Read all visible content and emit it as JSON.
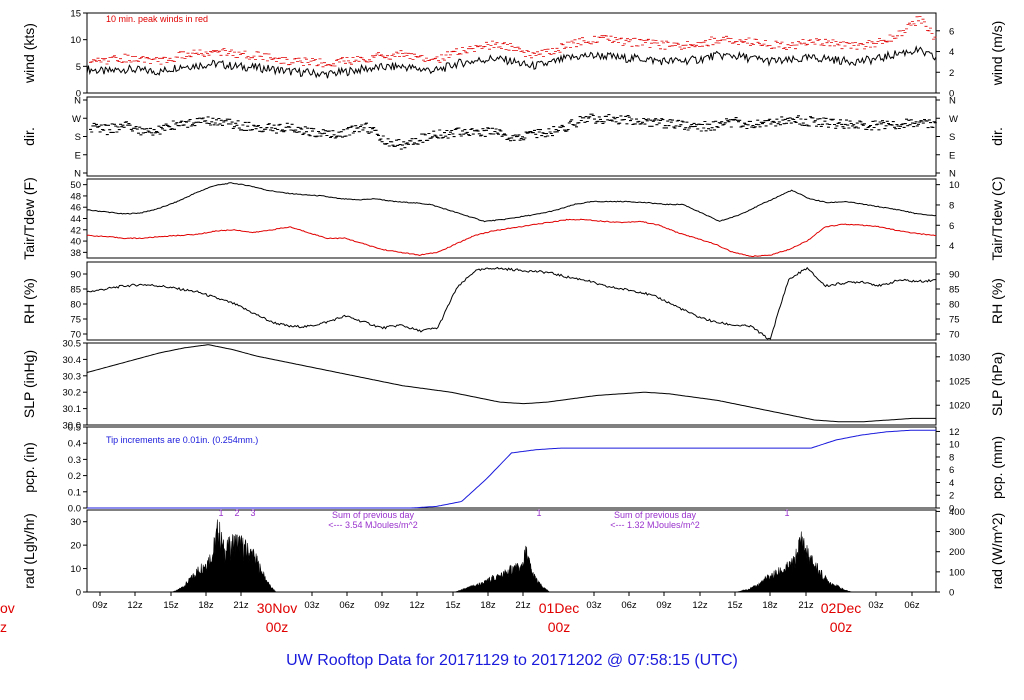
{
  "footer": "UW Rooftop Data for 20171129  to  20171202 @ 07:58:15  (UTC)",
  "colors": {
    "black": "#000000",
    "red": "#e00000",
    "blue": "#1a1adc",
    "purple": "#9932cc"
  },
  "chart_data": {
    "type": "line",
    "x_ticks": [
      "09z",
      "12z",
      "15z",
      "18z",
      "21z",
      "03z",
      "06z",
      "09z",
      "12z",
      "15z",
      "18z",
      "21z",
      "03z",
      "06z",
      "09z",
      "12z",
      "15z",
      "18z",
      "21z",
      "03z",
      "06z"
    ],
    "day_labels": [
      {
        "day": "30Nov",
        "hour": "00z"
      },
      {
        "day": "01Dec",
        "hour": "00z"
      },
      {
        "day": "02Dec",
        "hour": "00z"
      }
    ],
    "clipped_day_label": {
      "day": "ov",
      "hour": "z"
    },
    "panels": [
      {
        "id": "wind",
        "ylabel_left": "wind (kts)",
        "ylabel_right": "wind (m/s)",
        "left_ticks": [
          "0",
          "5",
          "10",
          "15"
        ],
        "ylim": [
          0,
          15
        ],
        "right_ticks": [
          "0",
          "2",
          "4",
          "6"
        ],
        "note": "10 min. peak winds in red",
        "series": [
          {
            "name": "wind speed",
            "color": "black",
            "values": [
              4.5,
              4,
              4.5,
              4.2,
              4,
              5,
              5.2,
              5.5,
              5,
              4.8,
              4.5,
              4,
              3.8,
              3.5,
              4,
              4.5,
              4.8,
              5,
              4.5,
              4.2,
              5.5,
              6,
              6.5,
              6,
              5,
              5.5,
              6.5,
              7,
              7,
              6.5,
              6.5,
              6,
              6,
              6.2,
              7,
              7,
              6.5,
              6,
              6,
              6.5,
              6.5,
              6,
              6,
              6.5,
              7.5,
              8,
              6.5
            ]
          },
          {
            "name": "10 min peak",
            "color": "red",
            "values": [
              6.5,
              6,
              6.5,
              6.3,
              6,
              7,
              7.5,
              7.8,
              7.2,
              7,
              6.5,
              6,
              5.8,
              5.5,
              6,
              6.5,
              7,
              7.2,
              6.5,
              6.3,
              7.8,
              8.5,
              9,
              8.5,
              7.2,
              7.8,
              9,
              10,
              10,
              9.5,
              9.5,
              9,
              8.8,
              9,
              10,
              10,
              9.5,
              9,
              8.8,
              9.5,
              9.5,
              9,
              9,
              9.5,
              11,
              14,
              10
            ]
          }
        ]
      },
      {
        "id": "dir",
        "ylabel_left": "dir.",
        "ylabel_right": "dir.",
        "left_ticks": [
          "N",
          "E",
          "S",
          "W",
          "N"
        ],
        "ylim": [
          0,
          360
        ],
        "right_ticks": [
          "N",
          "E",
          "S",
          "W",
          "N"
        ],
        "series": [
          {
            "name": "wind direction",
            "color": "black",
            "values": [
              225,
              210,
              230,
              200,
              215,
              240,
              245,
              250,
              235,
              220,
              215,
              220,
              200,
              190,
              200,
              230,
              160,
              140,
              170,
              190,
              200,
              205,
              195,
              180,
              185,
              200,
              230,
              260,
              260,
              255,
              250,
              240,
              235,
              225,
              230,
              245,
              235,
              240,
              260,
              250,
              240,
              235,
              230,
              230,
              235,
              240,
              230
            ]
          }
        ]
      },
      {
        "id": "temp",
        "ylabel_left": "Tair/Tdew (F)",
        "ylabel_right": "Tair/Tdew (C)",
        "left_ticks": [
          "38",
          "40",
          "42",
          "44",
          "46",
          "48",
          "50"
        ],
        "ylim": [
          37,
          51
        ],
        "right_ticks": [
          "4",
          "6",
          "8",
          "10"
        ],
        "series": [
          {
            "name": "Tair",
            "color": "black",
            "values": [
              45.5,
              45.2,
              44.8,
              45,
              45.8,
              47,
              48.5,
              49.8,
              50.3,
              49.8,
              49,
              48.5,
              48.2,
              48,
              47.5,
              47.3,
              47.5,
              47,
              46.8,
              46.5,
              45.5,
              44.5,
              43.5,
              43.8,
              44.3,
              44.8,
              45.5,
              46.5,
              47,
              47,
              47,
              46.8,
              46.5,
              46.5,
              45,
              43.5,
              44.5,
              46,
              47.5,
              49,
              47.5,
              46.8,
              47,
              46.5,
              46,
              45.5,
              44.8,
              44.5
            ]
          },
          {
            "name": "Tdew",
            "color": "red",
            "values": [
              41,
              40.8,
              40.5,
              40.5,
              40.8,
              41,
              41.2,
              41.8,
              42,
              41.5,
              42,
              42.5,
              41.5,
              40.5,
              40.5,
              39.5,
              38.5,
              38,
              37.5,
              38,
              39.5,
              41,
              41.8,
              42.3,
              42.8,
              43.3,
              43.8,
              43.8,
              43.5,
              43.3,
              43.5,
              42.8,
              41.5,
              40.5,
              39.5,
              38,
              37.3,
              37.5,
              38.5,
              40,
              42.5,
              43,
              42.8,
              42.5,
              41.8,
              41.3,
              41
            ]
          }
        ]
      },
      {
        "id": "rh",
        "ylabel_left": "RH (%)",
        "ylabel_right": "RH (%)",
        "left_ticks": [
          "70",
          "75",
          "80",
          "85",
          "90"
        ],
        "ylim": [
          68,
          94
        ],
        "right_ticks": [
          "70",
          "75",
          "80",
          "85",
          "90"
        ],
        "series": [
          {
            "name": "RH",
            "color": "black",
            "values": [
              84,
              85,
              86,
              86.5,
              86,
              85,
              84,
              82,
              80,
              77,
              74,
              72.5,
              72.5,
              74,
              76,
              74,
              72,
              73,
              71,
              72,
              85,
              91,
              92,
              91.5,
              91,
              90.5,
              89,
              88,
              86,
              85,
              84,
              82,
              79,
              76,
              74,
              73,
              72.5,
              68,
              88,
              92,
              86,
              87,
              87.5,
              86,
              88,
              87.5,
              88
            ]
          }
        ]
      },
      {
        "id": "slp",
        "ylabel_left": "SLP (inHg)",
        "ylabel_right": "SLP (hPa)",
        "left_ticks": [
          "30.0",
          "30.1",
          "30.2",
          "30.3",
          "30.4",
          "30.5"
        ],
        "ylim": [
          30.0,
          30.5
        ],
        "right_ticks": [
          "1020",
          "1025",
          "1030"
        ],
        "series": [
          {
            "name": "SLP",
            "color": "black",
            "values": [
              30.32,
              30.36,
              30.4,
              30.44,
              30.47,
              30.49,
              30.46,
              30.42,
              30.39,
              30.36,
              30.33,
              30.3,
              30.27,
              30.24,
              30.22,
              30.2,
              30.17,
              30.14,
              30.13,
              30.14,
              30.16,
              30.18,
              30.19,
              30.2,
              30.19,
              30.17,
              30.15,
              30.12,
              30.09,
              30.06,
              30.03,
              30.02,
              30.02,
              30.03,
              30.04,
              30.04
            ]
          }
        ]
      },
      {
        "id": "pcp",
        "ylabel_left": "pcp. (in)",
        "ylabel_right": "pcp. (mm)",
        "left_ticks": [
          "0.0",
          "0.1",
          "0.2",
          "0.3",
          "0.4",
          "0.5"
        ],
        "ylim": [
          0,
          0.5
        ],
        "right_ticks": [
          "0",
          "2",
          "4",
          "6",
          "8",
          "10",
          "12"
        ],
        "note": "Tip increments are 0.01in. (0.254mm.)",
        "series": [
          {
            "name": "cumulative precipitation",
            "color": "blue",
            "values": [
              0,
              0,
              0,
              0,
              0,
              0,
              0,
              0,
              0,
              0,
              0,
              0,
              0,
              0,
              0.01,
              0.04,
              0.18,
              0.34,
              0.36,
              0.37,
              0.37,
              0.37,
              0.37,
              0.37,
              0.37,
              0.37,
              0.37,
              0.37,
              0.37,
              0.37,
              0.42,
              0.45,
              0.47,
              0.48,
              0.48
            ]
          }
        ]
      },
      {
        "id": "rad",
        "ylabel_left": "rad (Lgly/hr)",
        "ylabel_right": "rad (W/m^2)",
        "left_ticks": [
          "0",
          "10",
          "20",
          "30"
        ],
        "ylim": [
          0,
          35
        ],
        "right_ticks": [
          "0",
          "100",
          "200",
          "300",
          "400"
        ],
        "annotations": [
          {
            "text": "Sum of previous day",
            "line2": "<--- 3.54 MJoules/m^2"
          },
          {
            "text": "Sum of previous day",
            "line2": "<--- 1.32 MJoules/m^2"
          }
        ],
        "markers": [
          "1",
          "2",
          "3",
          "1",
          "1"
        ],
        "series": [
          {
            "name": "day 1 radiation",
            "color": "black",
            "values": [
              0,
              1,
              3,
              6,
              10,
              13,
              16,
              20,
              34,
              22,
              24,
              27,
              25,
              22,
              20,
              14,
              8,
              3,
              0
            ]
          },
          {
            "name": "day 2 radiation",
            "color": "black",
            "values": [
              0,
              1,
              2,
              3,
              4,
              5,
              7,
              8,
              9,
              11,
              13,
              12,
              21,
              10,
              5,
              2,
              0
            ]
          },
          {
            "name": "day 3 radiation",
            "color": "black",
            "values": [
              0,
              1,
              2,
              4,
              7,
              9,
              11,
              13,
              16,
              29,
              18,
              14,
              8,
              5,
              3,
              1,
              0
            ]
          }
        ]
      }
    ]
  }
}
